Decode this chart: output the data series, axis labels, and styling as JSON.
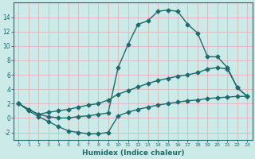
{
  "xlabel": "Humidex (Indice chaleur)",
  "bg_color": "#cceae8",
  "grid_color": "#b8d8d5",
  "line_color": "#1e6b6b",
  "x_ticks": [
    0,
    1,
    2,
    3,
    4,
    5,
    6,
    7,
    8,
    9,
    10,
    11,
    12,
    13,
    14,
    15,
    16,
    17,
    18,
    19,
    20,
    21,
    22,
    23
  ],
  "ylim": [
    -3.0,
    16.0
  ],
  "xlim": [
    -0.5,
    23.5
  ],
  "yticks": [
    -2,
    0,
    2,
    4,
    6,
    8,
    10,
    12,
    14
  ],
  "series": [
    {
      "x": [
        0,
        1,
        2,
        3,
        4,
        5,
        6,
        7,
        8,
        9,
        10,
        11,
        12,
        13,
        14,
        15,
        16,
        17,
        18,
        19,
        20,
        21,
        22,
        23
      ],
      "y": [
        2.0,
        1.2,
        0.5,
        0.2,
        0.0,
        0.0,
        0.2,
        0.3,
        0.5,
        0.7,
        7.0,
        10.2,
        13.0,
        13.5,
        14.8,
        15.0,
        14.8,
        13.0,
        11.8,
        8.5,
        8.5,
        7.0,
        4.2,
        3.0
      ],
      "marker": "D",
      "markersize": 2.5,
      "linewidth": 1.0
    },
    {
      "x": [
        0,
        1,
        2,
        3,
        4,
        5,
        6,
        7,
        8,
        9,
        10,
        11,
        12,
        13,
        14,
        15,
        16,
        17,
        18,
        19,
        20,
        21,
        22,
        23
      ],
      "y": [
        2.0,
        1.2,
        0.5,
        0.8,
        1.0,
        1.2,
        1.5,
        1.8,
        2.0,
        2.5,
        3.3,
        3.8,
        4.3,
        4.8,
        5.2,
        5.5,
        5.8,
        6.0,
        6.3,
        6.8,
        7.0,
        6.8,
        4.2,
        3.0
      ],
      "marker": "D",
      "markersize": 2.5,
      "linewidth": 1.0
    },
    {
      "x": [
        0,
        1,
        2,
        3,
        4,
        5,
        6,
        7,
        8,
        9,
        10,
        11,
        12,
        13,
        14,
        15,
        16,
        17,
        18,
        19,
        20,
        21,
        22,
        23
      ],
      "y": [
        2.0,
        1.0,
        0.2,
        -0.5,
        -1.2,
        -1.8,
        -2.0,
        -2.2,
        -2.2,
        -2.0,
        0.3,
        0.8,
        1.2,
        1.5,
        1.8,
        2.0,
        2.2,
        2.4,
        2.5,
        2.7,
        2.8,
        2.9,
        3.0,
        3.0
      ],
      "marker": "D",
      "markersize": 2.5,
      "linewidth": 1.0
    }
  ]
}
